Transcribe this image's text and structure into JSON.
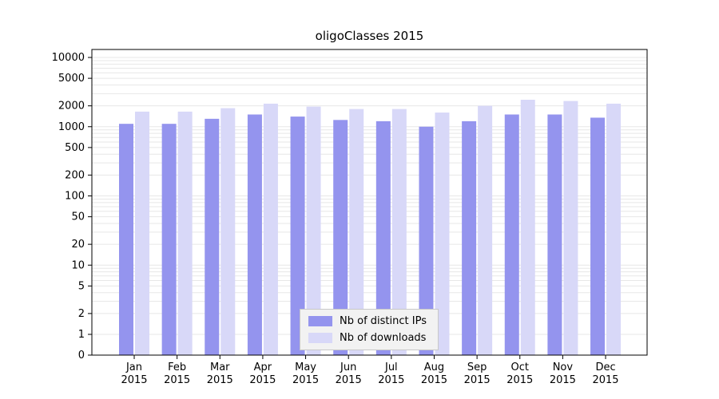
{
  "title": "oligoClasses 2015",
  "chart_data": {
    "type": "bar",
    "title": "oligoClasses 2015",
    "categories": [
      "Jan 2015",
      "Feb 2015",
      "Mar 2015",
      "Apr 2015",
      "May 2015",
      "Jun 2015",
      "Jul 2015",
      "Aug 2015",
      "Sep 2015",
      "Oct 2015",
      "Nov 2015",
      "Dec 2015"
    ],
    "series": [
      {
        "name": "Nb of distinct IPs",
        "color": "#9494ee",
        "values": [
          1100,
          1100,
          1300,
          1500,
          1400,
          1250,
          1200,
          1000,
          1200,
          1500,
          1500,
          1350
        ]
      },
      {
        "name": "Nb of downloads",
        "color": "#d8d8f8",
        "values": [
          1650,
          1650,
          1850,
          2150,
          1950,
          1800,
          1800,
          1600,
          2000,
          2450,
          2350,
          2150
        ]
      }
    ],
    "xlabel": "",
    "ylabel": "",
    "yscale": "log",
    "yticks": [
      0,
      1,
      2,
      5,
      10,
      20,
      50,
      100,
      200,
      500,
      1000,
      2000,
      5000,
      10000
    ],
    "ylim": [
      0,
      10000
    ],
    "grid": "horizontal-minor-log",
    "grid_color": "#e7e7e7",
    "legend_position": "inside-bottom-center",
    "legend_labels": [
      "Nb of distinct IPs",
      "Nb of downloads"
    ]
  }
}
